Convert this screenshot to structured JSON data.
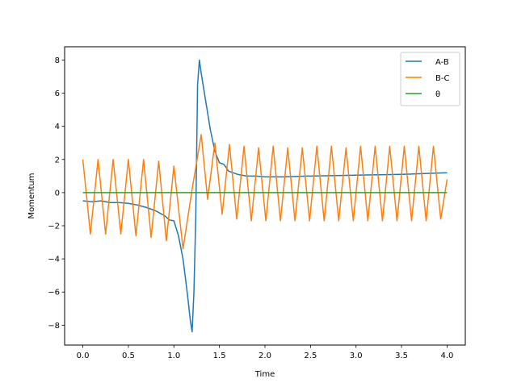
{
  "chart_data": {
    "type": "line",
    "xlabel": "Time",
    "ylabel": "Momentum",
    "xlim": [
      -0.2,
      4.2
    ],
    "ylim": [
      -9.2,
      8.8
    ],
    "xticks": [
      0.0,
      0.5,
      1.0,
      1.5,
      2.0,
      2.5,
      3.0,
      3.5,
      4.0
    ],
    "xtick_labels": [
      "0.0",
      "0.5",
      "1.0",
      "1.5",
      "2.0",
      "2.5",
      "3.0",
      "3.5",
      "4.0"
    ],
    "yticks": [
      -8,
      -6,
      -4,
      -2,
      0,
      2,
      4,
      6,
      8
    ],
    "ytick_labels": [
      "−8",
      "−6",
      "−4",
      "−2",
      "0",
      "2",
      "4",
      "6",
      "8"
    ],
    "grid": false,
    "legend_position": "top-right",
    "series": [
      {
        "name": "A-B",
        "color": "#1f77b4",
        "x": [
          0.0,
          0.1,
          0.2,
          0.3,
          0.4,
          0.5,
          0.6,
          0.7,
          0.8,
          0.9,
          0.95,
          1.0,
          1.05,
          1.1,
          1.15,
          1.18,
          1.2,
          1.22,
          1.24,
          1.26,
          1.28,
          1.3,
          1.35,
          1.4,
          1.45,
          1.5,
          1.55,
          1.6,
          1.7,
          1.8,
          1.9,
          2.0,
          2.2,
          2.5,
          3.0,
          3.5,
          4.0
        ],
        "y": [
          -0.5,
          -0.55,
          -0.5,
          -0.6,
          -0.6,
          -0.65,
          -0.75,
          -0.9,
          -1.1,
          -1.4,
          -1.65,
          -1.7,
          -2.6,
          -4.0,
          -6.2,
          -7.7,
          -8.4,
          -6.0,
          -1.5,
          6.5,
          8.0,
          7.2,
          5.5,
          3.8,
          2.5,
          1.8,
          1.7,
          1.3,
          1.1,
          1.0,
          1.0,
          0.95,
          0.95,
          1.0,
          1.05,
          1.1,
          1.2
        ]
      },
      {
        "name": "B-C",
        "color": "#ff7f0e",
        "x": [
          0.0,
          0.083,
          0.167,
          0.25,
          0.333,
          0.417,
          0.5,
          0.583,
          0.667,
          0.75,
          0.833,
          0.917,
          1.0,
          1.1,
          1.2,
          1.3,
          1.37,
          1.45,
          1.53,
          1.61,
          1.69,
          1.77,
          1.85,
          1.93,
          2.01,
          2.09,
          2.17,
          2.25,
          2.33,
          2.41,
          2.49,
          2.57,
          2.65,
          2.73,
          2.81,
          2.89,
          2.97,
          3.05,
          3.13,
          3.21,
          3.29,
          3.37,
          3.45,
          3.53,
          3.61,
          3.69,
          3.77,
          3.85,
          3.93,
          4.0
        ],
        "y": [
          2.0,
          -2.5,
          2.0,
          -2.5,
          2.0,
          -2.5,
          2.0,
          -2.6,
          2.0,
          -2.7,
          1.9,
          -2.9,
          1.6,
          -3.4,
          0.2,
          3.5,
          -0.4,
          3.0,
          -1.3,
          2.9,
          -1.6,
          2.8,
          -1.7,
          2.7,
          -1.7,
          2.8,
          -1.7,
          2.7,
          -1.7,
          2.7,
          -1.7,
          2.8,
          -1.7,
          2.8,
          -1.7,
          2.7,
          -1.7,
          2.8,
          -1.7,
          2.8,
          -1.7,
          2.8,
          -1.7,
          2.8,
          -1.7,
          2.8,
          -1.7,
          2.8,
          -1.6,
          0.8
        ]
      },
      {
        "name": "θ",
        "color": "#2ca02c",
        "x": [
          0.0,
          4.0
        ],
        "y": [
          0.0,
          0.0
        ]
      }
    ]
  }
}
